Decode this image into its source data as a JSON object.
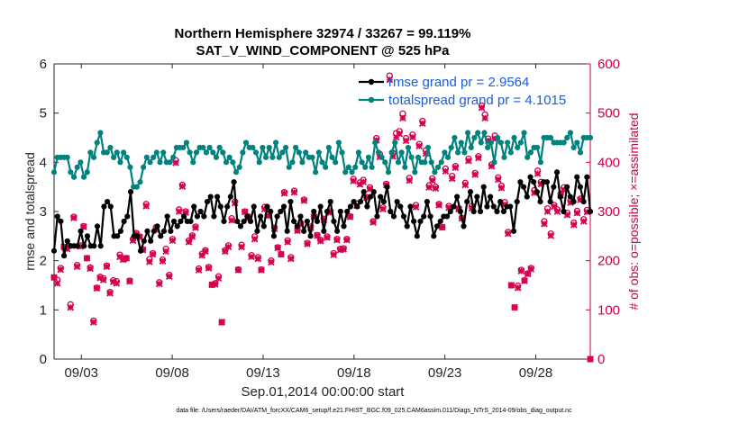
{
  "chart_data": {
    "type": "line",
    "title": "Northern Hemisphere 32974 / 33267 = 99.119%",
    "subtitle": "SAT_V_WIND_COMPONENT @ 525 hPa",
    "xlabel": "Sep.01,2014 00:00:00 start",
    "ylabel_left": "rmse and totalspread",
    "ylabel_right": "# of obs: o=possible; ×=assimilated",
    "footnote": "data file: /Users/raeder/DAI/ATM_forcXX/CAM6_setup/f.e21.FHIST_BGC.f09_025.CAM6assim.011/Diags_NTrS_2014-09/obs_diag_output.nc",
    "xlim": [
      1.5,
      31.0
    ],
    "ylim_left": [
      0,
      6
    ],
    "ylim_right": [
      0,
      600
    ],
    "x_ticks": [
      3,
      8,
      13,
      18,
      23,
      28
    ],
    "x_tick_labels": [
      "09/03",
      "09/08",
      "09/13",
      "09/18",
      "09/23",
      "09/28"
    ],
    "y_ticks_left": [
      0,
      1,
      2,
      3,
      4,
      5,
      6
    ],
    "y_ticks_right": [
      0,
      100,
      200,
      300,
      400,
      500,
      600
    ],
    "grid": false,
    "legend_position": "top-right",
    "series": [
      {
        "name": "rmse grand pr = 2.9564",
        "axis": "left",
        "color": "#000000",
        "values": [
          2.2,
          2.9,
          2.8,
          2.1,
          2.4,
          2.3,
          2.3,
          2.3,
          2.6,
          2.3,
          2.5,
          2.3,
          2.3,
          2.7,
          2.3,
          3.1,
          3.2,
          3.1,
          2.5,
          2.5,
          2.6,
          2.8,
          2.9,
          3.4,
          2.5,
          2.5,
          2.2,
          2.4,
          2.6,
          2.4,
          2.6,
          2.7,
          2.5,
          2.6,
          2.9,
          2.6,
          2.8,
          2.7,
          2.8,
          2.9,
          2.8,
          2.8,
          3.1,
          2.9,
          3.0,
          2.9,
          3.2,
          3.3,
          2.9,
          3.3,
          3.1,
          2.8,
          3.1,
          3.3,
          3.6,
          2.8,
          2.7,
          2.8,
          2.9,
          2.8,
          3.1,
          2.6,
          2.9,
          2.7,
          3.1,
          3.0,
          2.5,
          2.9,
          3.0,
          3.1,
          2.6,
          3.2,
          2.8,
          2.7,
          2.9,
          2.6,
          2.8,
          2.5,
          3.0,
          2.8,
          3.1,
          2.6,
          3.0,
          3.2,
          2.8,
          2.6,
          3.0,
          2.7,
          3.0,
          3.1,
          3.2,
          3.1,
          3.2,
          3.4,
          3.1,
          3.3,
          3.4,
          2.9,
          3.3,
          3.2,
          3.5,
          3.0,
          2.9,
          3.2,
          3.1,
          2.9,
          2.7,
          3.1,
          2.8,
          2.5,
          2.8,
          2.9,
          3.2,
          2.9,
          2.5,
          2.7,
          2.8,
          2.9,
          2.9,
          3.0,
          3.1,
          3.3,
          3.0,
          2.7,
          3.2,
          3.4,
          3.0,
          3.3,
          3.0,
          3.5,
          3.1,
          3.3,
          3.1,
          3.0,
          3.2,
          3.0,
          3.1,
          3.1,
          2.6,
          3.2,
          3.6,
          3.5,
          3.3,
          3.7,
          3.6,
          3.4,
          3.2,
          3.6,
          3.6,
          3.2,
          3.5,
          3.8,
          3.3,
          3.0,
          3.5,
          3.3,
          3.2,
          3.7,
          3.5,
          3.2,
          3.7,
          3.0
        ]
      },
      {
        "name": "totalspread grand pr = 4.1015",
        "axis": "left",
        "color": "#00827e",
        "values": [
          3.8,
          4.1,
          4.1,
          4.1,
          4.1,
          3.8,
          3.7,
          3.9,
          4.0,
          3.7,
          3.8,
          4.2,
          4.1,
          4.4,
          4.6,
          4.2,
          4.2,
          4.3,
          4.1,
          4.2,
          4.0,
          4.2,
          4.1,
          3.9,
          3.5,
          3.5,
          3.6,
          3.9,
          4.1,
          4.0,
          4.1,
          4.2,
          4.0,
          4.2,
          4.0,
          4.0,
          4.1,
          4.3,
          4.3,
          4.3,
          4.4,
          4.2,
          4.0,
          4.2,
          4.3,
          4.3,
          4.2,
          4.3,
          4.2,
          4.1,
          4.3,
          4.2,
          4.0,
          4.1,
          4.0,
          3.8,
          3.9,
          4.2,
          4.4,
          4.3,
          4.3,
          4.2,
          4.0,
          4.3,
          4.1,
          4.3,
          4.1,
          4.4,
          4.1,
          4.2,
          4.3,
          3.9,
          4.0,
          4.3,
          4.2,
          4.0,
          4.2,
          4.1,
          4.1,
          3.8,
          4.2,
          4.0,
          3.9,
          4.3,
          4.1,
          4.0,
          4.4,
          4.2,
          3.8,
          3.9,
          3.8,
          3.9,
          4.2,
          4.0,
          3.9,
          4.1,
          3.9,
          4.4,
          4.2,
          4.1,
          4.0,
          3.8,
          4.2,
          4.4,
          4.0,
          4.2,
          3.9,
          4.3,
          4.1,
          3.8,
          4.1,
          4.0,
          4.0,
          4.3,
          4.0,
          3.8,
          3.9,
          4.0,
          4.2,
          4.1,
          4.3,
          4.5,
          4.2,
          4.4,
          4.2,
          4.6,
          4.3,
          4.5,
          4.6,
          4.4,
          4.6,
          4.3,
          4.4,
          4.0,
          4.5,
          4.4,
          4.1,
          4.4,
          4.2,
          4.5,
          4.3,
          4.4,
          4.6,
          4.1,
          4.2,
          4.3,
          4.3,
          4.0,
          4.5,
          4.5,
          4.5,
          4.4,
          4.4,
          4.4,
          4.4,
          4.5,
          4.6,
          4.3,
          4.4,
          4.2,
          4.5,
          4.5,
          4.5
        ]
      }
    ],
    "obs_counts": {
      "axis": "right",
      "color": "#d4004f",
      "possible": [
        166,
        161,
        185,
        228,
        227,
        111,
        289,
        191,
        231,
        270,
        205,
        186,
        78,
        145,
        167,
        164,
        190,
        136,
        160,
        158,
        212,
        204,
        205,
        159,
        244,
        256,
        249,
        223,
        315,
        203,
        215,
        268,
        156,
        202,
        224,
        171,
        244,
        404,
        304,
        354,
        300,
        241,
        251,
        269,
        184,
        214,
        221,
        187,
        151,
        154,
        168,
        75,
        221,
        231,
        286,
        320,
        182,
        232,
        300,
        290,
        211,
        249,
        207,
        182,
        309,
        294,
        200,
        267,
        227,
        213,
        339,
        241,
        207,
        342,
        262,
        276,
        324,
        236,
        269,
        290,
        252,
        242,
        285,
        249,
        300,
        215,
        244,
        224,
        225,
        244,
        290,
        366,
        316,
        359,
        364,
        329,
        349,
        280,
        449,
        417,
        308,
        356,
        576,
        419,
        459,
        463,
        499,
        449,
        368,
        456,
        313,
        437,
        484,
        424,
        353,
        367,
        350,
        315,
        268,
        387,
        311,
        372,
        392,
        306,
        287,
        358,
        407,
        311,
        378,
        412,
        515,
        497,
        448,
        395,
        454,
        369,
        352,
        319,
        258,
        150,
        105,
        149,
        181,
        160,
        174,
        185,
        343,
        383,
        360,
        280,
        306,
        255,
        313,
        304,
        336,
        349,
        297,
        322,
        277,
        301,
        326,
        284,
        303,
        0
      ],
      "assimilated": [
        166,
        154,
        182,
        228,
        224,
        105,
        287,
        188,
        229,
        269,
        205,
        184,
        75,
        144,
        165,
        161,
        188,
        134,
        157,
        154,
        208,
        202,
        205,
        158,
        241,
        254,
        248,
        222,
        311,
        198,
        213,
        263,
        153,
        199,
        219,
        168,
        241,
        399,
        300,
        351,
        298,
        238,
        249,
        267,
        181,
        211,
        219,
        185,
        151,
        152,
        164,
        75,
        219,
        228,
        282,
        317,
        181,
        228,
        299,
        286,
        208,
        244,
        204,
        181,
        305,
        291,
        197,
        265,
        226,
        213,
        337,
        238,
        204,
        339,
        261,
        274,
        322,
        234,
        267,
        289,
        251,
        240,
        283,
        247,
        298,
        212,
        242,
        222,
        223,
        242,
        289,
        362,
        312,
        355,
        360,
        328,
        346,
        278,
        445,
        411,
        305,
        354,
        568,
        412,
        451,
        458,
        490,
        444,
        363,
        451,
        309,
        433,
        479,
        418,
        349,
        363,
        347,
        313,
        268,
        382,
        308,
        367,
        389,
        305,
        286,
        354,
        403,
        307,
        375,
        409,
        511,
        490,
        444,
        392,
        448,
        365,
        348,
        314,
        255,
        150,
        105,
        145,
        179,
        159,
        173,
        183,
        338,
        377,
        356,
        275,
        300,
        251,
        310,
        300,
        333,
        344,
        293,
        318,
        273,
        297,
        324,
        280,
        299,
        0
      ]
    }
  }
}
